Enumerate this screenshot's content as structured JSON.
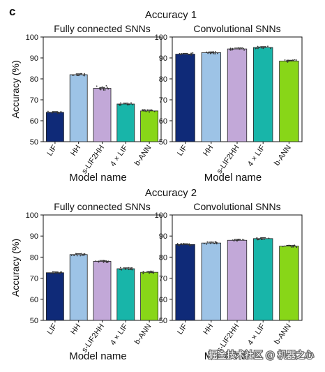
{
  "figure": {
    "panel_label": "c",
    "watermark": "掘金技术社区 @ 机器之心"
  },
  "chart_data": [
    {
      "type": "bar",
      "section_title": "Accuracy 1",
      "title": "Fully connected SNNs",
      "categories": [
        "LIF",
        "HH",
        "s-LIF2HH",
        "4 × LIF",
        "b-ANN"
      ],
      "values": [
        64.0,
        82.0,
        75.5,
        68.0,
        64.7
      ],
      "colors": [
        "#0f2a78",
        "#9dc3e6",
        "#c2a8d8",
        "#18b5a9",
        "#88d618"
      ],
      "xlabel": "Model name",
      "ylabel": "Accuracy (%)",
      "ylim": [
        50,
        100
      ],
      "yticks": [
        50,
        60,
        70,
        80,
        90,
        100
      ],
      "grid": false,
      "legend": "none"
    },
    {
      "type": "bar",
      "section_title": "Accuracy 1",
      "title": "Convolutional SNNs",
      "categories": [
        "LIF",
        "HH",
        "s-LIF2HH",
        "4 × LIF",
        "b-ANN"
      ],
      "values": [
        91.8,
        92.5,
        94.3,
        95.0,
        88.5
      ],
      "colors": [
        "#0f2a78",
        "#9dc3e6",
        "#c2a8d8",
        "#18b5a9",
        "#88d618"
      ],
      "xlabel": "Model name",
      "ylabel": "",
      "ylim": [
        50,
        100
      ],
      "yticks": [
        50,
        60,
        70,
        80,
        90,
        100
      ],
      "grid": false,
      "legend": "none"
    },
    {
      "type": "bar",
      "section_title": "Accuracy 2",
      "title": "Fully connected SNNs",
      "categories": [
        "LIF",
        "HH",
        "s-LIF2HH",
        "4 × LIF",
        "b-ANN"
      ],
      "values": [
        72.6,
        81.2,
        78.0,
        74.5,
        72.8
      ],
      "colors": [
        "#0f2a78",
        "#9dc3e6",
        "#c2a8d8",
        "#18b5a9",
        "#88d618"
      ],
      "xlabel": "Model name",
      "ylabel": "Accuracy (%)",
      "ylim": [
        50,
        100
      ],
      "yticks": [
        50,
        60,
        70,
        80,
        90,
        100
      ],
      "grid": false,
      "legend": "none"
    },
    {
      "type": "bar",
      "section_title": "Accuracy 2",
      "title": "Convolutional SNNs",
      "categories": [
        "LIF",
        "HH",
        "s-LIF2HH",
        "4 × LIF",
        "b-ANN"
      ],
      "values": [
        86.0,
        86.7,
        88.0,
        88.8,
        85.2
      ],
      "colors": [
        "#0f2a78",
        "#9dc3e6",
        "#c2a8d8",
        "#18b5a9",
        "#88d618"
      ],
      "xlabel": "Model name",
      "ylabel": "",
      "ylim": [
        50,
        100
      ],
      "yticks": [
        50,
        60,
        70,
        80,
        90,
        100
      ],
      "grid": false,
      "legend": "none"
    }
  ]
}
